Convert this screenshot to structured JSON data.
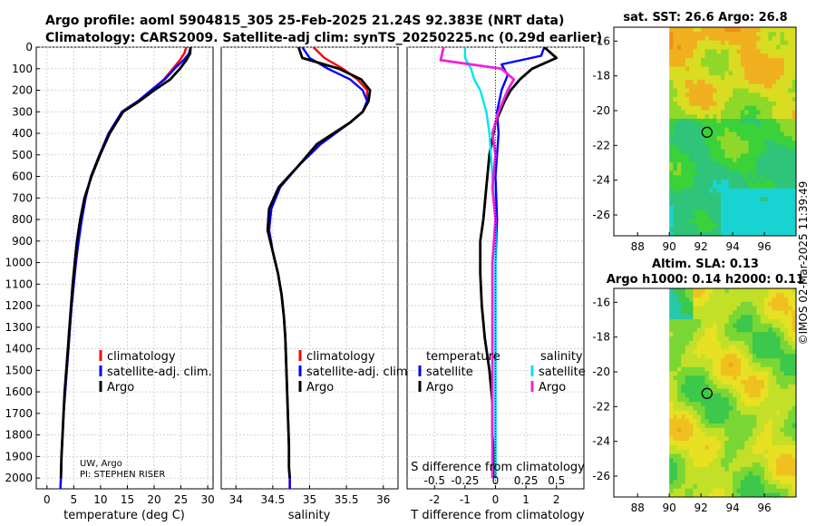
{
  "header": {
    "title_line1": "Argo profile: aoml 5904815_305 25-Feb-2025 21.24S 92.383E (NRT data)",
    "title_line2": "Climatology: CARS2009. Satellite-adj clim: synTS_20250225.nc (0.29d earlier)"
  },
  "stamp": "©IMOS 02-Mar-2025 11:39:49",
  "colors": {
    "climatology": "#ff0000",
    "satellite_adj": "#0000ff",
    "argo": "#000000",
    "sat_salinity": "#00e5ee",
    "argo_salinity": "#ee22dd"
  },
  "chart_data": [
    {
      "type": "line",
      "id": "temperature",
      "xlabel": "temperature (deg C)",
      "xlim": [
        -2,
        31
      ],
      "xticks": [
        0,
        5,
        10,
        15,
        20,
        25,
        30
      ],
      "ylim": [
        2050,
        0
      ],
      "yticks": [
        0,
        100,
        200,
        300,
        400,
        500,
        600,
        700,
        800,
        900,
        1000,
        1100,
        1200,
        1300,
        1400,
        1500,
        1600,
        1700,
        1800,
        1900,
        2000
      ],
      "legend": [
        "climatology",
        "satellite-adj. clim.",
        "Argo"
      ],
      "note_lines": [
        "UW, Argo",
        "PI: STEPHEN RISER"
      ],
      "series": [
        {
          "name": "climatology",
          "color": "#ff0000",
          "x": [
            26.0,
            25.6,
            24.8,
            23.5,
            21.8,
            19.5,
            17.0,
            14.0,
            11.5,
            9.8,
            8.2,
            7.2,
            6.5,
            5.9,
            5.4,
            5.0,
            4.6,
            4.3,
            4.0,
            3.7,
            3.4,
            3.1,
            2.9,
            2.7,
            2.6,
            2.5
          ],
          "depth": [
            0,
            30,
            60,
            100,
            150,
            200,
            250,
            300,
            400,
            500,
            600,
            700,
            800,
            900,
            1000,
            1100,
            1200,
            1300,
            1400,
            1500,
            1600,
            1700,
            1800,
            1900,
            2000,
            2050
          ]
        },
        {
          "name": "satellite-adj. clim.",
          "color": "#0000ff",
          "x": [
            26.8,
            26.5,
            25.5,
            23.8,
            22.0,
            19.4,
            17.0,
            14.0,
            11.5,
            9.8,
            8.2,
            7.2,
            6.5,
            5.9,
            5.4,
            5.0,
            4.6,
            4.3,
            4.0,
            3.7,
            3.4,
            3.1,
            2.9,
            2.7,
            2.6,
            2.5
          ],
          "depth": [
            0,
            30,
            60,
            100,
            150,
            200,
            250,
            300,
            400,
            500,
            600,
            700,
            800,
            900,
            1000,
            1100,
            1200,
            1300,
            1400,
            1500,
            1600,
            1700,
            1800,
            1900,
            2000,
            2050
          ]
        },
        {
          "name": "Argo",
          "color": "#000000",
          "x": [
            26.8,
            26.7,
            26.0,
            24.8,
            23.0,
            20.0,
            17.3,
            14.2,
            11.7,
            9.9,
            8.3,
            7.0,
            6.2,
            5.6,
            5.2,
            4.8,
            4.5,
            4.2,
            3.9,
            3.6,
            3.3,
            3.1,
            2.9,
            2.7,
            2.6
          ],
          "depth": [
            0,
            30,
            60,
            100,
            150,
            200,
            250,
            300,
            400,
            500,
            600,
            700,
            800,
            900,
            1000,
            1100,
            1200,
            1300,
            1400,
            1500,
            1600,
            1700,
            1800,
            1900,
            2000
          ]
        }
      ]
    },
    {
      "type": "line",
      "id": "salinity",
      "xlabel": "salinity",
      "xlim": [
        33.8,
        36.2
      ],
      "xticks": [
        34,
        34.5,
        35,
        35.5,
        36
      ],
      "ylim": [
        2050,
        0
      ],
      "legend": [
        "climatology",
        "satellite-adj. clim.",
        "Argo"
      ],
      "series": [
        {
          "name": "climatology",
          "color": "#ff0000",
          "x": [
            35.05,
            35.2,
            35.45,
            35.65,
            35.78,
            35.78,
            35.72,
            35.55,
            35.15,
            34.85,
            34.6,
            34.48,
            34.45,
            34.5,
            34.57,
            34.62,
            34.65,
            34.67,
            34.68,
            34.69,
            34.7,
            34.71,
            34.72,
            34.72,
            34.73,
            34.73
          ],
          "depth": [
            0,
            50,
            100,
            150,
            200,
            250,
            300,
            350,
            450,
            550,
            650,
            750,
            850,
            950,
            1050,
            1150,
            1250,
            1350,
            1450,
            1550,
            1650,
            1750,
            1850,
            1950,
            2000,
            2050
          ]
        },
        {
          "name": "satellite-adj. clim.",
          "color": "#0000ff",
          "x": [
            34.9,
            35.0,
            35.25,
            35.55,
            35.72,
            35.78,
            35.72,
            35.55,
            35.15,
            34.85,
            34.6,
            34.48,
            34.45,
            34.5,
            34.57,
            34.62,
            34.65,
            34.67,
            34.68,
            34.69,
            34.7,
            34.71,
            34.72,
            34.72,
            34.73,
            34.73
          ],
          "depth": [
            0,
            50,
            100,
            150,
            200,
            250,
            300,
            350,
            450,
            550,
            650,
            750,
            850,
            950,
            1050,
            1150,
            1250,
            1350,
            1450,
            1550,
            1650,
            1750,
            1850,
            1950,
            2000,
            2050
          ]
        },
        {
          "name": "Argo",
          "color": "#000000",
          "x": [
            34.85,
            34.9,
            35.4,
            35.7,
            35.82,
            35.8,
            35.72,
            35.55,
            35.1,
            34.85,
            34.58,
            34.45,
            34.43,
            34.5,
            34.57,
            34.62,
            34.65,
            34.67,
            34.68,
            34.69,
            34.7,
            34.71,
            34.72,
            34.72,
            34.73
          ],
          "depth": [
            0,
            50,
            100,
            150,
            200,
            250,
            300,
            350,
            450,
            550,
            650,
            750,
            850,
            950,
            1050,
            1150,
            1250,
            1350,
            1450,
            1550,
            1650,
            1750,
            1850,
            1950,
            2000
          ]
        }
      ]
    },
    {
      "type": "line",
      "id": "difference",
      "xlabel": "T difference from climatology",
      "top_label": "S difference from climatology",
      "xlim": [
        -2.9,
        2.9
      ],
      "xticks": [
        -2,
        -1,
        0,
        1,
        2
      ],
      "salinity_ticks": [
        "-0.5",
        "-0.25",
        "0",
        "0.25",
        "0.5"
      ],
      "salinity_tick_positions": [
        -2,
        -1,
        0,
        1,
        2
      ],
      "ylim": [
        2050,
        0
      ],
      "legend_temperature_title": "temperature",
      "legend_salinity_title": "salinity",
      "legend_satellite": "satellite",
      "legend_argo": "Argo",
      "series": [
        {
          "name": "T satellite",
          "color": "#0000ff",
          "x": [
            1.6,
            1.5,
            0.2,
            0.4,
            0.2,
            0.05,
            0.1,
            0.0,
            0.05,
            0.0,
            0.0,
            0.0,
            0.0,
            0.0,
            0.0
          ],
          "depth": [
            0,
            40,
            80,
            130,
            200,
            300,
            400,
            600,
            800,
            1000,
            1200,
            1400,
            1600,
            1800,
            2000
          ]
        },
        {
          "name": "T Argo",
          "color": "#000000",
          "x": [
            1.6,
            2.0,
            1.2,
            0.8,
            0.5,
            0.3,
            0.0,
            -0.2,
            -0.3,
            -0.4,
            -0.5,
            -0.5,
            -0.45,
            -0.35,
            -0.2,
            -0.1,
            -0.1,
            -0.05,
            -0.05
          ],
          "depth": [
            0,
            50,
            100,
            150,
            200,
            250,
            350,
            500,
            650,
            800,
            900,
            1050,
            1200,
            1350,
            1500,
            1650,
            1800,
            1900,
            2000
          ]
        },
        {
          "name": "S satellite",
          "color": "#00e5ee",
          "x": [
            -1.0,
            -1.0,
            -0.8,
            -0.7,
            -0.5,
            -0.3,
            -0.2,
            -0.1,
            0.0,
            0.0,
            0.0,
            0.0,
            0.0
          ],
          "depth": [
            0,
            50,
            100,
            150,
            200,
            300,
            400,
            600,
            800,
            1000,
            1300,
            1700,
            2000
          ]
        },
        {
          "name": "S Argo",
          "color": "#ee22dd",
          "x": [
            -1.7,
            -1.8,
            0.2,
            0.6,
            0.4,
            0.1,
            -0.1,
            0.0,
            -0.1,
            0.0,
            -0.1,
            -0.1,
            -0.1,
            -0.1,
            -0.1,
            -0.1
          ],
          "depth": [
            0,
            60,
            100,
            150,
            200,
            300,
            400,
            500,
            650,
            800,
            1000,
            1200,
            1400,
            1600,
            1800,
            2000
          ]
        }
      ]
    },
    {
      "type": "heatmap",
      "id": "sst_map",
      "title": "sat. SST: 26.6 Argo: 26.8",
      "xlim": [
        86.5,
        98
      ],
      "ylim": [
        -27.2,
        -15.2
      ],
      "xticks": [
        88,
        90,
        92,
        94,
        96
      ],
      "yticks": [
        -16,
        -18,
        -20,
        -22,
        -24,
        -26
      ],
      "data_lon_min": 90,
      "marker": {
        "lon": 92.383,
        "lat": -21.24
      }
    },
    {
      "type": "heatmap",
      "id": "sla_map",
      "title_line1": "Altim. SLA: 0.13",
      "title_line2": "Argo h1000: 0.14 h2000: 0.11",
      "xlim": [
        86.5,
        98
      ],
      "ylim": [
        -27.2,
        -15.2
      ],
      "xticks": [
        88,
        90,
        92,
        94,
        96
      ],
      "yticks": [
        -16,
        -18,
        -20,
        -22,
        -24,
        -26
      ],
      "data_lon_min": 90,
      "marker": {
        "lon": 92.383,
        "lat": -21.24
      }
    }
  ]
}
